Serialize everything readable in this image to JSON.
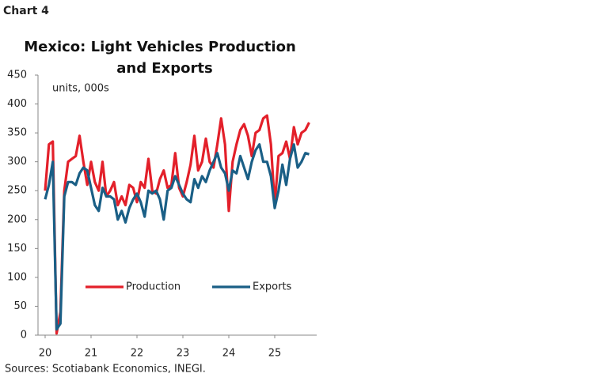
{
  "chart_label": "Chart 4",
  "source": "Sources: Scotiabank Economics, INEGI.",
  "chart_data": {
    "type": "line",
    "title": "Mexico: Light Vehicles Production",
    "subtitle": "and Exports",
    "y_label": "units, 000s",
    "categories": [
      "20",
      null,
      null,
      null,
      null,
      null,
      null,
      null,
      null,
      null,
      null,
      null,
      "21",
      null,
      null,
      null,
      null,
      null,
      null,
      null,
      null,
      null,
      null,
      null,
      "22",
      null,
      null,
      null,
      null,
      null,
      null,
      null,
      null,
      null,
      null,
      null,
      "23",
      null,
      null,
      null,
      null,
      null,
      null,
      null,
      null,
      null,
      null,
      null,
      "24",
      null,
      null,
      null,
      null,
      null,
      null,
      null,
      null,
      null,
      null,
      null,
      "25",
      null,
      null,
      null,
      null,
      null,
      null,
      null,
      null,
      null
    ],
    "series": [
      {
        "name": "Production",
        "color": "#e3202a",
        "values": [
          250,
          330,
          335,
          3,
          40,
          250,
          300,
          305,
          310,
          345,
          300,
          260,
          300,
          265,
          250,
          300,
          240,
          250,
          265,
          225,
          240,
          225,
          260,
          255,
          230,
          265,
          255,
          305,
          250,
          245,
          270,
          285,
          255,
          260,
          315,
          255,
          240,
          265,
          295,
          345,
          285,
          300,
          340,
          300,
          290,
          330,
          375,
          330,
          215,
          300,
          330,
          355,
          365,
          345,
          310,
          350,
          355,
          375,
          380,
          330,
          225,
          310,
          315,
          335,
          305,
          360,
          330,
          350,
          355,
          368
        ]
      },
      {
        "name": "Exports",
        "color": "#1a5f86",
        "values": [
          235,
          260,
          300,
          10,
          20,
          240,
          265,
          265,
          260,
          280,
          290,
          285,
          255,
          225,
          215,
          255,
          240,
          240,
          235,
          200,
          215,
          195,
          220,
          235,
          245,
          230,
          205,
          250,
          245,
          250,
          235,
          200,
          250,
          255,
          275,
          260,
          245,
          235,
          230,
          270,
          255,
          275,
          265,
          285,
          300,
          315,
          290,
          280,
          250,
          285,
          280,
          310,
          290,
          270,
          300,
          320,
          330,
          300,
          300,
          275,
          220,
          250,
          295,
          260,
          305,
          330,
          290,
          300,
          315,
          313
        ]
      }
    ],
    "ylim": [
      0,
      450
    ],
    "yticks": [
      0,
      50,
      100,
      150,
      200,
      250,
      300,
      350,
      400,
      450
    ],
    "grid": false,
    "legend": "center"
  }
}
